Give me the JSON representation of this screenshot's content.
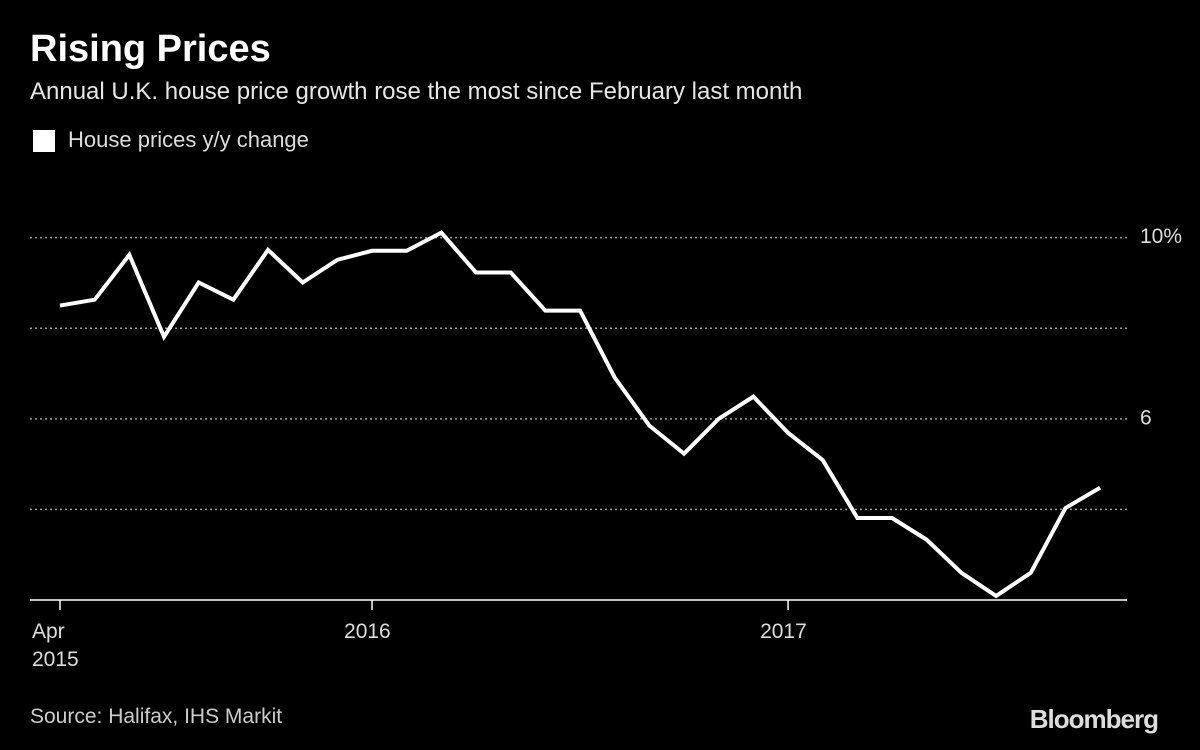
{
  "title": "Rising Prices",
  "subtitle": "Annual U.K. house price growth rose the most since February last month",
  "source": "Source: Halifax, IHS Markit",
  "brand": "Bloomberg",
  "chart_data": {
    "type": "line",
    "categories": [
      "Apr 2015",
      null,
      null,
      null,
      null,
      null,
      null,
      null,
      null,
      "2016",
      null,
      null,
      null,
      null,
      null,
      null,
      null,
      null,
      null,
      null,
      null,
      "2017",
      null,
      null,
      null,
      null,
      null,
      null,
      null,
      null,
      null
    ],
    "series": [
      {
        "name": "House prices y/y change",
        "color": "#ffffff",
        "values": [
          8.5,
          8.63,
          9.62,
          7.81,
          9.01,
          8.63,
          9.73,
          9.01,
          9.51,
          9.71,
          9.71,
          10.11,
          9.23,
          9.23,
          8.39,
          8.39,
          6.91,
          5.85,
          5.23,
          6.0,
          6.49,
          5.69,
          5.09,
          3.81,
          3.81,
          3.33,
          2.6,
          2.09,
          2.6,
          4.03,
          4.48
        ]
      }
    ],
    "ylim": [
      2,
      10.5
    ],
    "yticks": [
      6,
      {
        "value": 10,
        "label": "10%"
      }
    ],
    "ygrid": [
      4,
      6,
      8,
      10
    ],
    "grid": true,
    "legend": "top-left"
  }
}
